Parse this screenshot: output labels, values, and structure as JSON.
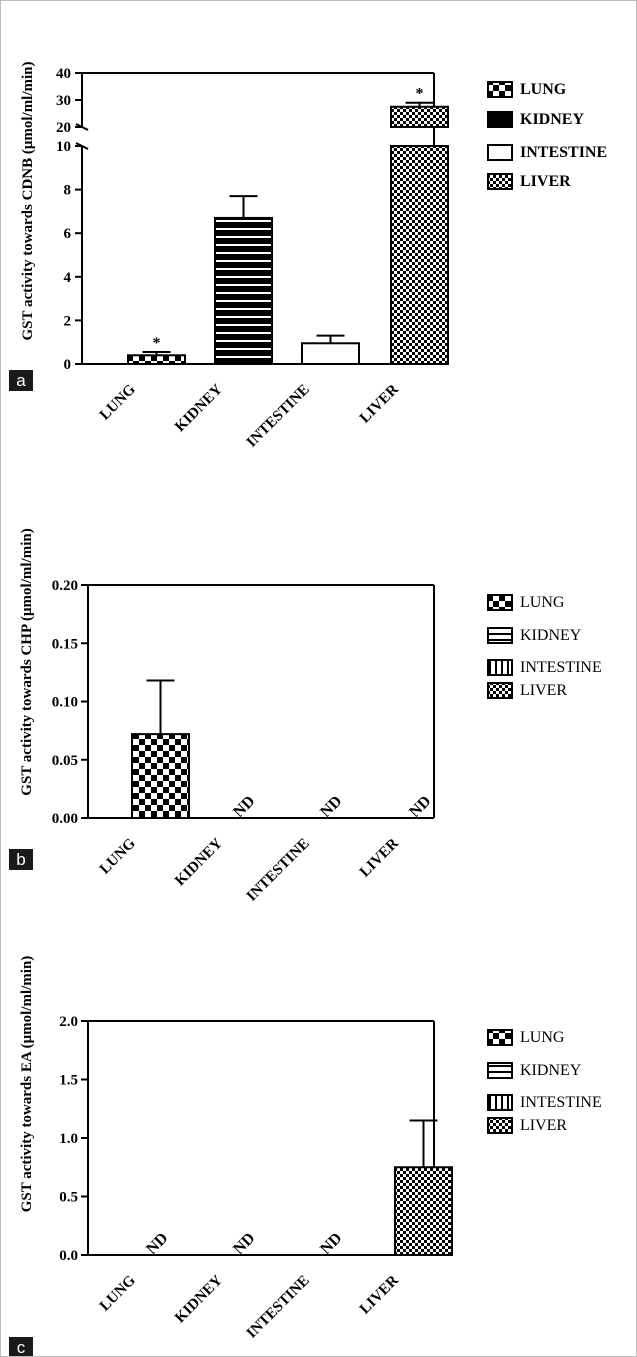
{
  "chart_data": [
    {
      "panel": "a",
      "type": "bar",
      "ylabel": "GST activity towards CDNB (μmol/ml/min)",
      "categories": [
        "LUNG",
        "KIDNEY",
        "INTESTINE",
        "LIVER"
      ],
      "values": [
        0.4,
        6.7,
        0.95,
        27.5
      ],
      "errors": [
        0.15,
        1.0,
        0.35,
        1.5
      ],
      "annotations": [
        "*",
        "",
        "",
        "*"
      ],
      "axis_break": true,
      "ylim_lower": [
        0,
        10
      ],
      "ylim_upper": [
        20,
        40
      ],
      "yticks_lower": [
        "0",
        "2",
        "4",
        "6",
        "8",
        "10"
      ],
      "yticks_upper": [
        "20",
        "30",
        "40"
      ],
      "legend": [
        "LUNG",
        "KIDNEY",
        "INTESTINE",
        "LIVER"
      ],
      "legend_placement": "right",
      "grid": false
    },
    {
      "panel": "b",
      "type": "bar",
      "ylabel": "GST activity towards CHP (μmol/ml/min)",
      "categories": [
        "LUNG",
        "KIDNEY",
        "INTESTINE",
        "LIVER"
      ],
      "values": [
        0.072,
        0,
        0,
        0
      ],
      "errors": [
        0.046,
        0,
        0,
        0
      ],
      "annotations": [
        "",
        "ND",
        "ND",
        "ND"
      ],
      "ylim": [
        0,
        0.2
      ],
      "yticks": [
        "0.00",
        "0.05",
        "0.10",
        "0.15",
        "0.20"
      ],
      "legend": [
        "LUNG",
        "KIDNEY",
        "INTESTINE",
        "LIVER"
      ],
      "legend_placement": "right",
      "grid": false
    },
    {
      "panel": "c",
      "type": "bar",
      "ylabel": "GST activity towards EA (μmol/ml/min)",
      "categories": [
        "LUNG",
        "KIDNEY",
        "INTESTINE",
        "LIVER"
      ],
      "values": [
        0,
        0,
        0,
        0.75
      ],
      "errors": [
        0,
        0,
        0,
        0.4
      ],
      "annotations": [
        "ND",
        "ND",
        "ND",
        ""
      ],
      "ylim": [
        0,
        2.0
      ],
      "yticks": [
        "0.0",
        "0.5",
        "1.0",
        "1.5",
        "2.0"
      ],
      "legend": [
        "LUNG",
        "KIDNEY",
        "INTESTINE",
        "LIVER"
      ],
      "legend_placement": "right",
      "grid": false
    }
  ],
  "colors": {
    "bar_fill": "#000000",
    "background": "#ffffff",
    "panel_label_bg": "#1a1a1a"
  }
}
